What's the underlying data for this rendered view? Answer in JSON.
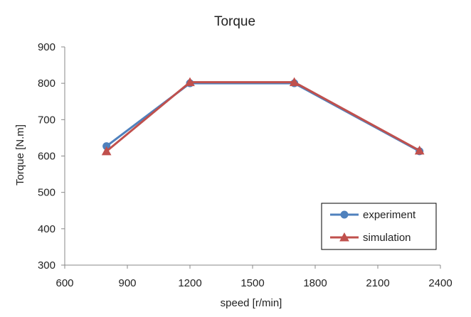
{
  "chart_data": {
    "type": "line",
    "title": "Torque",
    "xlabel": "speed [r/min]",
    "ylabel": "Torque [N.m]",
    "xlim": [
      600,
      2400
    ],
    "ylim": [
      300,
      900
    ],
    "xticks": [
      600,
      900,
      1200,
      1500,
      1800,
      2100,
      2400
    ],
    "yticks": [
      300,
      400,
      500,
      600,
      700,
      800,
      900
    ],
    "grid": false,
    "legend_position": "bottom-right",
    "series": [
      {
        "name": "experiment",
        "color": "#4F81BD",
        "marker": "circle",
        "x": [
          800,
          1200,
          1700,
          2300
        ],
        "y": [
          627,
          800,
          800,
          613
        ]
      },
      {
        "name": "simulation",
        "color": "#C0504D",
        "marker": "triangle",
        "x": [
          800,
          1200,
          1700,
          2300
        ],
        "y": [
          613,
          803,
          803,
          615
        ]
      }
    ]
  }
}
